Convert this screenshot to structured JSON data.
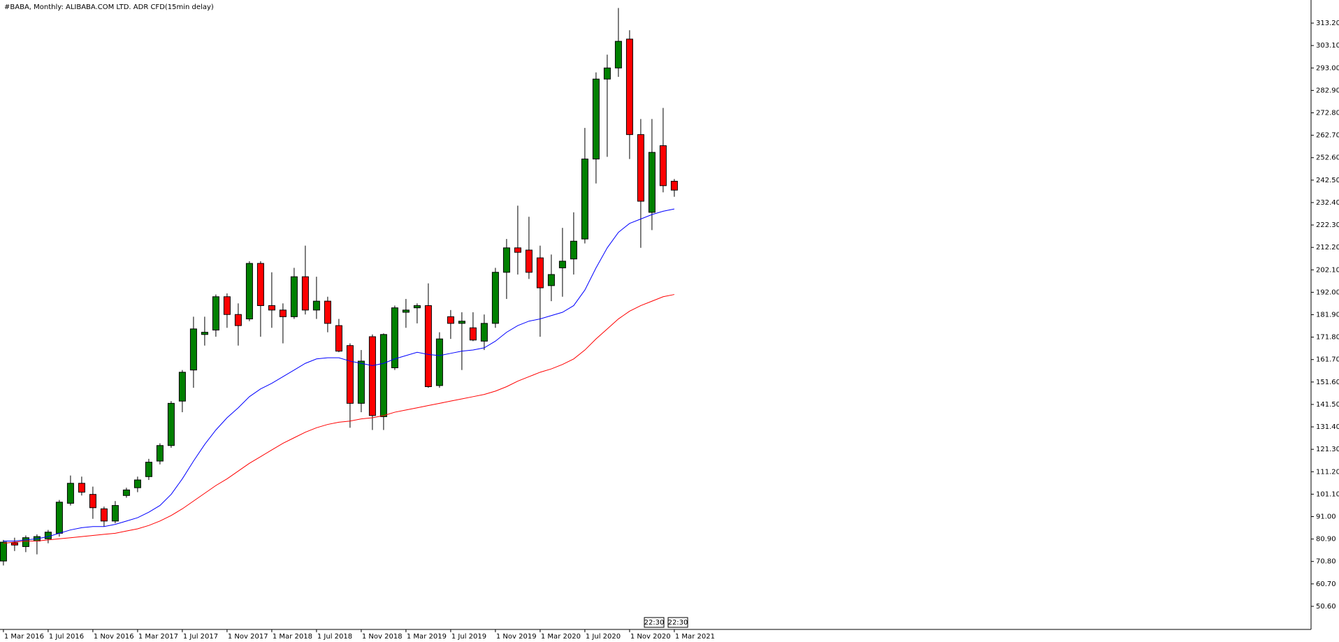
{
  "chart_data": {
    "type": "candlestick",
    "title": "#BABA, Monthly:  ALIBABA.COM LTD. ADR CFD(15min delay)",
    "categories": [
      "1 Mar 2016",
      null,
      null,
      null,
      "1 Jul 2016",
      null,
      null,
      null,
      "1 Nov 2016",
      null,
      null,
      null,
      "1 Mar 2017",
      null,
      null,
      null,
      "1 Jul 2017",
      null,
      null,
      null,
      "1 Nov 2017",
      null,
      null,
      null,
      "1 Mar 2018",
      null,
      null,
      null,
      "1 Jul 2018",
      null,
      null,
      null,
      "1 Nov 2018",
      null,
      null,
      null,
      "1 Mar 2019",
      null,
      null,
      null,
      "1 Jul 2019",
      null,
      null,
      null,
      "1 Nov 2019",
      null,
      null,
      null,
      "1 Mar 2020",
      null,
      null,
      null,
      "1 Jul 2020",
      null,
      null,
      null,
      "1 Nov 2020",
      null,
      null,
      null,
      "1 Mar 2021"
    ],
    "ohlc": {
      "open": [
        71,
        79.2,
        77.5,
        80,
        81,
        83.5,
        97,
        106,
        101,
        94.5,
        89,
        100.5,
        104,
        109,
        116,
        123,
        143,
        157,
        173,
        175,
        190,
        182,
        180,
        205,
        186,
        184,
        181,
        199,
        184,
        188,
        177,
        168,
        142,
        172,
        136,
        158,
        183,
        185,
        186,
        150,
        181,
        178,
        176,
        170,
        178,
        201,
        212,
        211,
        207.5,
        195,
        203,
        207,
        216,
        252,
        288,
        293,
        306,
        263,
        228,
        258,
        242
      ],
      "high": [
        80.5,
        81.5,
        82.5,
        83,
        85,
        98.5,
        109.5,
        109,
        104.5,
        95.5,
        98,
        104,
        109,
        117,
        124,
        143,
        157,
        181,
        181,
        191,
        191.5,
        187,
        206,
        206,
        201,
        187,
        203,
        213,
        199,
        190,
        180,
        169,
        166,
        173,
        173.5,
        186,
        189,
        187,
        196,
        174,
        184,
        183,
        183,
        182,
        203,
        216,
        231,
        226,
        213,
        209,
        221,
        228,
        266,
        291,
        299,
        320,
        310,
        270,
        270,
        275,
        243
      ],
      "low": [
        69,
        75.5,
        75,
        74,
        79,
        82,
        96,
        100.5,
        90,
        86.5,
        88,
        99.5,
        102,
        107.5,
        114.5,
        122,
        138,
        149,
        168,
        172,
        176,
        168,
        179,
        172,
        176,
        169,
        180,
        182,
        180,
        174,
        165,
        131,
        138,
        130,
        130,
        157,
        176,
        178,
        149,
        149,
        171,
        157,
        170,
        166,
        176,
        189,
        200,
        198,
        172,
        188,
        190,
        200,
        214,
        241,
        253,
        289,
        252,
        212,
        220,
        237,
        235
      ],
      "close": [
        79.5,
        78.2,
        81.5,
        82,
        84,
        97.5,
        106,
        102,
        95,
        89,
        96,
        103,
        107.5,
        115.5,
        123,
        142,
        156,
        175.5,
        174,
        190,
        182,
        177,
        205,
        186,
        184,
        181,
        199,
        184,
        188,
        178,
        165.5,
        142,
        161,
        136.5,
        173,
        185,
        184,
        186,
        149.5,
        171,
        178,
        179,
        170.5,
        178,
        201,
        212,
        210,
        201,
        194,
        200,
        206,
        215,
        252,
        288,
        293,
        305,
        263,
        233,
        255,
        240,
        238
      ]
    },
    "up_color": "#008000",
    "down_color": "#ff0000",
    "lines": [
      {
        "color": "#0000ff",
        "values": [
          80,
          80,
          80.5,
          81,
          82,
          83.5,
          85,
          86,
          86.5,
          86.5,
          87.5,
          89,
          90.5,
          93,
          96,
          101,
          108,
          116,
          123.5,
          130,
          135.5,
          140,
          145,
          148.5,
          151,
          154,
          157,
          160,
          162,
          162.5,
          162.5,
          161,
          160,
          159,
          160,
          162,
          163.5,
          165,
          164,
          163.5,
          164.5,
          165.5,
          166,
          167,
          170,
          174,
          177,
          179,
          180,
          181.5,
          183,
          186,
          193,
          203,
          212,
          219,
          223,
          225,
          227,
          228.5,
          229.5
        ]
      },
      {
        "color": "#ff0000",
        "values": [
          79,
          79.5,
          80,
          80,
          80.5,
          81,
          81.5,
          82,
          82.5,
          83,
          83.5,
          84.5,
          85.5,
          87,
          89,
          91.5,
          94.5,
          98,
          101.5,
          105,
          108,
          111.5,
          115,
          118,
          121,
          124,
          126.5,
          129,
          131,
          132.5,
          133.5,
          134,
          135,
          135.5,
          136.5,
          138,
          139,
          140,
          141,
          142,
          143,
          144,
          145,
          146,
          147.5,
          149.5,
          152,
          154,
          156,
          157.5,
          159.5,
          162,
          166,
          171,
          175.5,
          180,
          183.5,
          186,
          188,
          190,
          191
        ]
      }
    ],
    "ylim": [
      40.2,
      323.6
    ],
    "yticks": [
      {
        "value": 50.6,
        "label": "50.60"
      },
      {
        "value": 60.7,
        "label": "60.70"
      },
      {
        "value": 70.8,
        "label": "70.80"
      },
      {
        "value": 80.9,
        "label": "80.90"
      },
      {
        "value": 91,
        "label": "91.00"
      },
      {
        "value": 101.1,
        "label": "101.10"
      },
      {
        "value": 111.2,
        "label": "111.20"
      },
      {
        "value": 121.3,
        "label": "121.30"
      },
      {
        "value": 131.4,
        "label": "131.40"
      },
      {
        "value": 141.5,
        "label": "141.50"
      },
      {
        "value": 151.6,
        "label": "151.60"
      },
      {
        "value": 161.7,
        "label": "161.70"
      },
      {
        "value": 171.8,
        "label": "171.80"
      },
      {
        "value": 181.9,
        "label": "181.90"
      },
      {
        "value": 192,
        "label": "192.00"
      },
      {
        "value": 202.1,
        "label": "202.10"
      },
      {
        "value": 212.2,
        "label": "212.20"
      },
      {
        "value": 222.3,
        "label": "222.30"
      },
      {
        "value": 232.4,
        "label": "232.40"
      },
      {
        "value": 242.5,
        "label": "242.50"
      },
      {
        "value": 252.6,
        "label": "252.60"
      },
      {
        "value": 262.7,
        "label": "262.70"
      },
      {
        "value": 272.8,
        "label": "272.80"
      },
      {
        "value": 282.9,
        "label": "282.90"
      },
      {
        "value": 293,
        "label": "293.00"
      },
      {
        "value": 303.1,
        "label": "303.10"
      },
      {
        "value": 313.2,
        "label": "313.20"
      }
    ],
    "annotations": [
      "22:30",
      "22:30"
    ]
  }
}
